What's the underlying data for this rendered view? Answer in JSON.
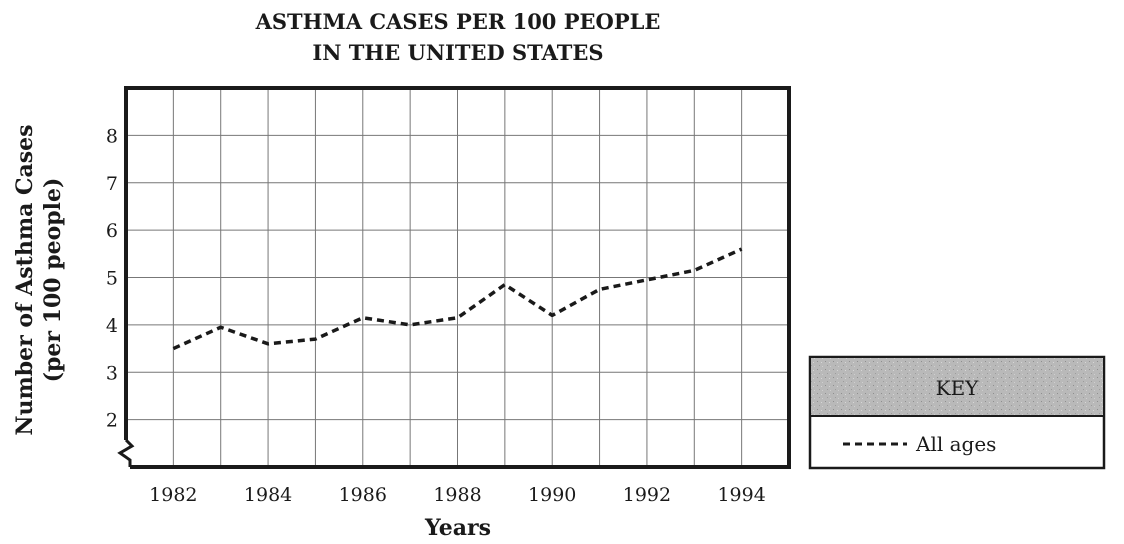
{
  "chart_data": {
    "type": "line",
    "title_lines": [
      "ASTHMA CASES PER 100 PEOPLE",
      "IN THE UNITED STATES"
    ],
    "xlabel": "Years",
    "ylabel_lines": [
      "Number of Asthma Cases",
      "(per 100 people)"
    ],
    "x_ticks": [
      1982,
      1984,
      1986,
      1988,
      1990,
      1992,
      1994
    ],
    "y_ticks": [
      2,
      3,
      4,
      5,
      6,
      7,
      8
    ],
    "xlim": [
      1981,
      1995
    ],
    "ylim": [
      1,
      9
    ],
    "axis_break": true,
    "grid": true,
    "series": [
      {
        "name": "All ages",
        "style": "dashed",
        "x": [
          1982,
          1983,
          1984,
          1985,
          1986,
          1987,
          1988,
          1989,
          1990,
          1991,
          1992,
          1993,
          1994
        ],
        "values": [
          3.5,
          3.95,
          3.6,
          3.7,
          4.15,
          4.0,
          4.15,
          4.85,
          4.2,
          4.75,
          4.95,
          5.15,
          5.6
        ]
      }
    ],
    "legend": {
      "title": "KEY",
      "entries": [
        "All ages"
      ],
      "placement": "right"
    }
  }
}
